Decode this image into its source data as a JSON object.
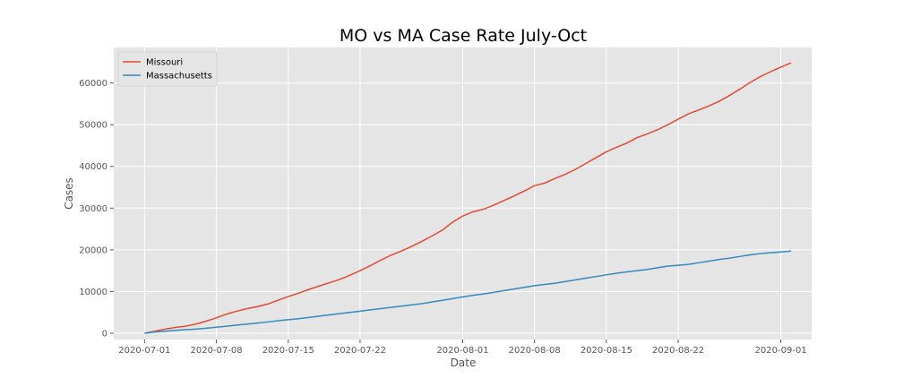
{
  "chart_data": {
    "type": "line",
    "title": "MO vs MA Case Rate July-Oct",
    "xlabel": "Date",
    "ylabel": "Cases",
    "x_ticks": [
      "2020-07-01",
      "2020-07-08",
      "2020-07-15",
      "2020-07-22",
      "2020-08-01",
      "2020-08-08",
      "2020-08-15",
      "2020-08-22",
      "2020-09-01"
    ],
    "y_ticks": [
      0,
      10000,
      20000,
      30000,
      40000,
      50000,
      60000
    ],
    "ylim": [
      -1500,
      68500
    ],
    "xlim": [
      "2020-06-28",
      "2020-09-04"
    ],
    "grid": true,
    "legend_position": "top-left",
    "background": "#e5e5e5",
    "series": [
      {
        "name": "Missouri",
        "color": "#e24a33",
        "points": [
          [
            "2020-07-01",
            0
          ],
          [
            "2020-07-02",
            500
          ],
          [
            "2020-07-03",
            1000
          ],
          [
            "2020-07-04",
            1400
          ],
          [
            "2020-07-05",
            1700
          ],
          [
            "2020-07-06",
            2200
          ],
          [
            "2020-07-07",
            2900
          ],
          [
            "2020-07-08",
            3700
          ],
          [
            "2020-07-09",
            4600
          ],
          [
            "2020-07-10",
            5300
          ],
          [
            "2020-07-11",
            5900
          ],
          [
            "2020-07-12",
            6400
          ],
          [
            "2020-07-13",
            7000
          ],
          [
            "2020-07-14",
            7900
          ],
          [
            "2020-07-15",
            8800
          ],
          [
            "2020-07-16",
            9600
          ],
          [
            "2020-07-17",
            10500
          ],
          [
            "2020-07-18",
            11300
          ],
          [
            "2020-07-19",
            12100
          ],
          [
            "2020-07-20",
            12900
          ],
          [
            "2020-07-21",
            13900
          ],
          [
            "2020-07-22",
            15000
          ],
          [
            "2020-07-23",
            16200
          ],
          [
            "2020-07-24",
            17500
          ],
          [
            "2020-07-25",
            18700
          ],
          [
            "2020-07-26",
            19700
          ],
          [
            "2020-07-27",
            20800
          ],
          [
            "2020-07-28",
            22000
          ],
          [
            "2020-07-29",
            23300
          ],
          [
            "2020-07-30",
            24700
          ],
          [
            "2020-07-31",
            26600
          ],
          [
            "2020-08-01",
            28100
          ],
          [
            "2020-08-02",
            29100
          ],
          [
            "2020-08-03",
            29700
          ],
          [
            "2020-08-04",
            30700
          ],
          [
            "2020-08-05",
            31800
          ],
          [
            "2020-08-06",
            32900
          ],
          [
            "2020-08-07",
            34100
          ],
          [
            "2020-08-08",
            35400
          ],
          [
            "2020-08-09",
            36000
          ],
          [
            "2020-08-10",
            37100
          ],
          [
            "2020-08-11",
            38100
          ],
          [
            "2020-08-12",
            39300
          ],
          [
            "2020-08-13",
            40700
          ],
          [
            "2020-08-14",
            42100
          ],
          [
            "2020-08-15",
            43500
          ],
          [
            "2020-08-16",
            44600
          ],
          [
            "2020-08-17",
            45600
          ],
          [
            "2020-08-18",
            46900
          ],
          [
            "2020-08-19",
            47800
          ],
          [
            "2020-08-20",
            48800
          ],
          [
            "2020-08-21",
            50000
          ],
          [
            "2020-08-22",
            51300
          ],
          [
            "2020-08-23",
            52600
          ],
          [
            "2020-08-24",
            53500
          ],
          [
            "2020-08-25",
            54500
          ],
          [
            "2020-08-26",
            55600
          ],
          [
            "2020-08-27",
            57000
          ],
          [
            "2020-08-28",
            58500
          ],
          [
            "2020-08-29",
            60100
          ],
          [
            "2020-08-30",
            61500
          ],
          [
            "2020-08-31",
            62700
          ],
          [
            "2020-09-01",
            63800
          ],
          [
            "2020-09-02",
            64800
          ]
        ]
      },
      {
        "name": "Massachusetts",
        "color": "#348abd",
        "points": [
          [
            "2020-07-01",
            0
          ],
          [
            "2020-07-02",
            300
          ],
          [
            "2020-07-03",
            500
          ],
          [
            "2020-07-04",
            700
          ],
          [
            "2020-07-05",
            850
          ],
          [
            "2020-07-06",
            1000
          ],
          [
            "2020-07-07",
            1200
          ],
          [
            "2020-07-08",
            1450
          ],
          [
            "2020-07-09",
            1700
          ],
          [
            "2020-07-10",
            1950
          ],
          [
            "2020-07-11",
            2200
          ],
          [
            "2020-07-12",
            2450
          ],
          [
            "2020-07-13",
            2700
          ],
          [
            "2020-07-14",
            3000
          ],
          [
            "2020-07-15",
            3250
          ],
          [
            "2020-07-16",
            3500
          ],
          [
            "2020-07-17",
            3800
          ],
          [
            "2020-07-18",
            4100
          ],
          [
            "2020-07-19",
            4400
          ],
          [
            "2020-07-20",
            4700
          ],
          [
            "2020-07-21",
            5000
          ],
          [
            "2020-07-22",
            5300
          ],
          [
            "2020-07-23",
            5600
          ],
          [
            "2020-07-24",
            5900
          ],
          [
            "2020-07-25",
            6200
          ],
          [
            "2020-07-26",
            6500
          ],
          [
            "2020-07-27",
            6800
          ],
          [
            "2020-07-28",
            7100
          ],
          [
            "2020-07-29",
            7500
          ],
          [
            "2020-07-30",
            7900
          ],
          [
            "2020-07-31",
            8300
          ],
          [
            "2020-08-01",
            8700
          ],
          [
            "2020-08-02",
            9100
          ],
          [
            "2020-08-03",
            9400
          ],
          [
            "2020-08-04",
            9800
          ],
          [
            "2020-08-05",
            10200
          ],
          [
            "2020-08-06",
            10600
          ],
          [
            "2020-08-07",
            11000
          ],
          [
            "2020-08-08",
            11400
          ],
          [
            "2020-08-09",
            11700
          ],
          [
            "2020-08-10",
            12000
          ],
          [
            "2020-08-11",
            12400
          ],
          [
            "2020-08-12",
            12800
          ],
          [
            "2020-08-13",
            13200
          ],
          [
            "2020-08-14",
            13600
          ],
          [
            "2020-08-15",
            14000
          ],
          [
            "2020-08-16",
            14400
          ],
          [
            "2020-08-17",
            14700
          ],
          [
            "2020-08-18",
            15000
          ],
          [
            "2020-08-19",
            15300
          ],
          [
            "2020-08-20",
            15700
          ],
          [
            "2020-08-21",
            16100
          ],
          [
            "2020-08-22",
            16300
          ],
          [
            "2020-08-23",
            16500
          ],
          [
            "2020-08-24",
            16900
          ],
          [
            "2020-08-25",
            17300
          ],
          [
            "2020-08-26",
            17700
          ],
          [
            "2020-08-27",
            18000
          ],
          [
            "2020-08-28",
            18400
          ],
          [
            "2020-08-29",
            18800
          ],
          [
            "2020-08-30",
            19100
          ],
          [
            "2020-08-31",
            19300
          ],
          [
            "2020-09-01",
            19500
          ],
          [
            "2020-09-02",
            19700
          ]
        ]
      }
    ]
  }
}
